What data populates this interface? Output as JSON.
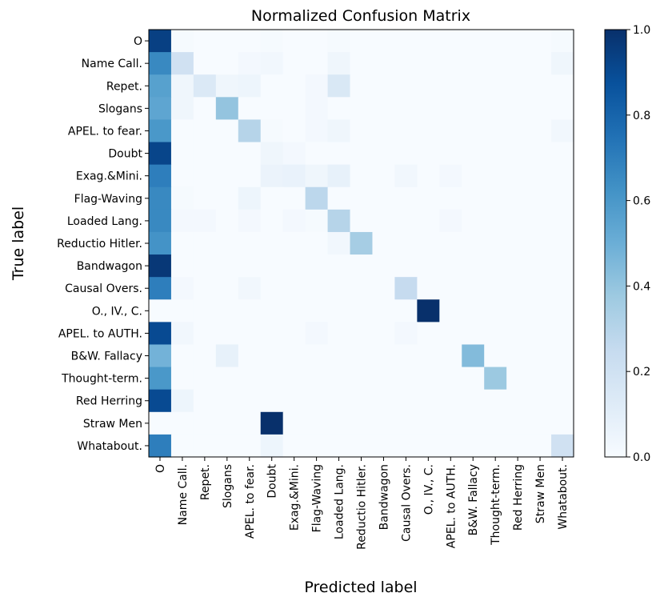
{
  "chart_data": {
    "type": "heatmap",
    "title": "Normalized Confusion Matrix",
    "xlabel": "Predicted label",
    "ylabel": "True label",
    "row_labels": [
      "O",
      "Name Call.",
      "Repet.",
      "Slogans",
      "APEL. to fear.",
      "Doubt",
      "Exag.&Mini.",
      "Flag-Waving",
      "Loaded Lang.",
      "Reductio Hitler.",
      "Bandwagon",
      "Causal Overs.",
      "O., IV., C.",
      "APEL. to AUTH.",
      "B&W. Fallacy",
      "Thought-term.",
      "Red Herring",
      "Straw Men",
      "Whatabout."
    ],
    "col_labels": [
      "O",
      "Name Call.",
      "Repet.",
      "Slogans",
      "APEL. to fear.",
      "Doubt",
      "Exag.&Mini.",
      "Flag-Waving",
      "Loaded Lang.",
      "Reductio Hitler.",
      "Bandwagon",
      "Causal Overs.",
      "O., IV., C.",
      "APEL. to AUTH.",
      "B&W. Fallacy",
      "Thought-term.",
      "Red Herring",
      "Straw Men",
      "Whatabout."
    ],
    "values": [
      [
        0.94,
        0.01,
        0.0,
        0.0,
        0.0,
        0.01,
        0.0,
        0.0,
        0.01,
        0.0,
        0.0,
        0.0,
        0.0,
        0.0,
        0.0,
        0.0,
        0.0,
        0.0,
        0.01
      ],
      [
        0.66,
        0.2,
        0.0,
        0.0,
        0.02,
        0.03,
        0.0,
        0.0,
        0.04,
        0.0,
        0.0,
        0.0,
        0.0,
        0.0,
        0.0,
        0.0,
        0.0,
        0.0,
        0.04
      ],
      [
        0.56,
        0.04,
        0.14,
        0.04,
        0.05,
        0.0,
        0.0,
        0.02,
        0.15,
        0.0,
        0.0,
        0.0,
        0.0,
        0.0,
        0.0,
        0.0,
        0.0,
        0.0,
        0.0
      ],
      [
        0.54,
        0.04,
        0.0,
        0.4,
        0.0,
        0.0,
        0.0,
        0.02,
        0.0,
        0.0,
        0.0,
        0.0,
        0.0,
        0.0,
        0.0,
        0.0,
        0.0,
        0.0,
        0.0
      ],
      [
        0.6,
        0.0,
        0.0,
        0.0,
        0.3,
        0.01,
        0.0,
        0.02,
        0.04,
        0.0,
        0.0,
        0.0,
        0.0,
        0.0,
        0.0,
        0.0,
        0.0,
        0.0,
        0.03
      ],
      [
        0.92,
        0.0,
        0.0,
        0.0,
        0.0,
        0.04,
        0.02,
        0.0,
        0.0,
        0.0,
        0.0,
        0.0,
        0.0,
        0.0,
        0.0,
        0.0,
        0.0,
        0.0,
        0.0
      ],
      [
        0.7,
        0.0,
        0.0,
        0.0,
        0.0,
        0.06,
        0.07,
        0.04,
        0.08,
        0.0,
        0.0,
        0.03,
        0.0,
        0.02,
        0.0,
        0.0,
        0.0,
        0.0,
        0.0
      ],
      [
        0.66,
        0.01,
        0.0,
        0.0,
        0.05,
        0.0,
        0.0,
        0.28,
        0.0,
        0.0,
        0.0,
        0.0,
        0.0,
        0.0,
        0.0,
        0.0,
        0.0,
        0.0,
        0.0
      ],
      [
        0.66,
        0.02,
        0.02,
        0.0,
        0.02,
        0.0,
        0.02,
        0.01,
        0.3,
        0.0,
        0.0,
        0.0,
        0.0,
        0.02,
        0.0,
        0.0,
        0.0,
        0.0,
        0.0
      ],
      [
        0.62,
        0.0,
        0.0,
        0.0,
        0.0,
        0.0,
        0.0,
        0.0,
        0.03,
        0.35,
        0.0,
        0.0,
        0.0,
        0.0,
        0.0,
        0.0,
        0.0,
        0.0,
        0.0
      ],
      [
        0.97,
        0.0,
        0.0,
        0.0,
        0.0,
        0.0,
        0.0,
        0.0,
        0.0,
        0.0,
        0.0,
        0.0,
        0.0,
        0.0,
        0.0,
        0.0,
        0.0,
        0.0,
        0.0
      ],
      [
        0.7,
        0.02,
        0.0,
        0.0,
        0.03,
        0.0,
        0.0,
        0.0,
        0.0,
        0.0,
        0.0,
        0.25,
        0.0,
        0.0,
        0.0,
        0.0,
        0.0,
        0.0,
        0.0
      ],
      [
        0.0,
        0.0,
        0.0,
        0.0,
        0.0,
        0.0,
        0.0,
        0.0,
        0.0,
        0.0,
        0.0,
        0.0,
        1.0,
        0.0,
        0.0,
        0.0,
        0.0,
        0.0,
        0.0
      ],
      [
        0.9,
        0.03,
        0.0,
        0.0,
        0.0,
        0.0,
        0.0,
        0.02,
        0.0,
        0.0,
        0.0,
        0.02,
        0.0,
        0.0,
        0.0,
        0.0,
        0.0,
        0.0,
        0.0
      ],
      [
        0.48,
        0.0,
        0.0,
        0.08,
        0.0,
        0.0,
        0.0,
        0.0,
        0.0,
        0.0,
        0.0,
        0.0,
        0.0,
        0.0,
        0.44,
        0.0,
        0.0,
        0.0,
        0.0
      ],
      [
        0.6,
        0.0,
        0.0,
        0.0,
        0.0,
        0.0,
        0.0,
        0.0,
        0.0,
        0.0,
        0.0,
        0.0,
        0.0,
        0.0,
        0.0,
        0.38,
        0.0,
        0.0,
        0.0
      ],
      [
        0.9,
        0.05,
        0.0,
        0.0,
        0.0,
        0.0,
        0.0,
        0.0,
        0.0,
        0.0,
        0.0,
        0.0,
        0.0,
        0.0,
        0.0,
        0.0,
        0.0,
        0.0,
        0.0
      ],
      [
        0.0,
        0.0,
        0.0,
        0.0,
        0.0,
        1.0,
        0.0,
        0.0,
        0.0,
        0.0,
        0.0,
        0.0,
        0.0,
        0.0,
        0.0,
        0.0,
        0.0,
        0.0,
        0.0
      ],
      [
        0.7,
        0.0,
        0.0,
        0.0,
        0.0,
        0.05,
        0.0,
        0.0,
        0.0,
        0.0,
        0.0,
        0.0,
        0.0,
        0.0,
        0.0,
        0.0,
        0.0,
        0.0,
        0.2
      ]
    ],
    "colormap": "Blues",
    "vmin": 0.0,
    "vmax": 1.0,
    "colorbar_ticks": [
      0.0,
      0.2,
      0.4,
      0.6,
      0.8,
      1.0
    ],
    "colorbar_tick_labels": [
      "0.0",
      "0.2",
      "0.4",
      "0.6",
      "0.8",
      "1.0"
    ]
  }
}
